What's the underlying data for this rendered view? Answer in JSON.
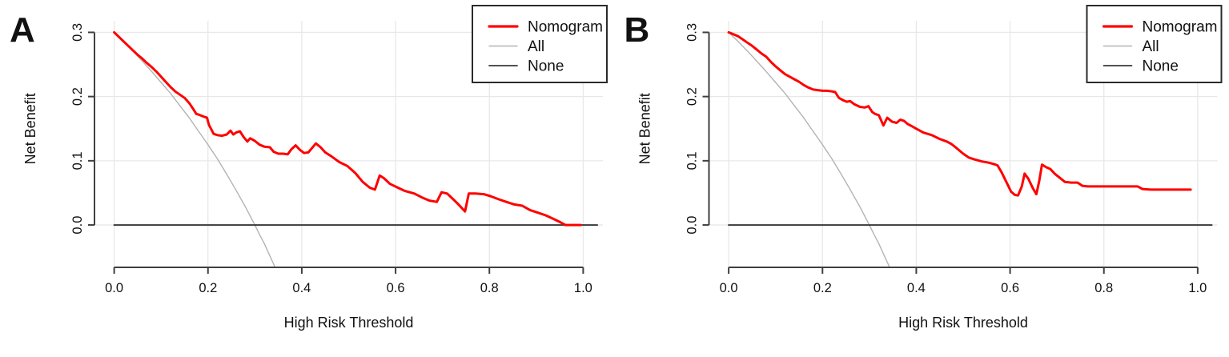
{
  "figure": {
    "background": "#ffffff",
    "description": "Decision curve analysis, two panels"
  },
  "colors": {
    "nomogram": "#fe0000",
    "all": "#b3b3b3",
    "none": "#3a3a3a",
    "axis": "#404040",
    "grid": "#e8e8e8",
    "text": "#111111",
    "legend_border": "#2b2b2b",
    "legend_fill": "#ffffff"
  },
  "chart_data": [
    {
      "type": "line",
      "panel_label": "A",
      "xlabel": "High Risk Threshold",
      "ylabel": "Net Benefit",
      "x_ticks": [
        0.0,
        0.2,
        0.4,
        0.6,
        0.8,
        1.0
      ],
      "x_tick_labels": [
        "0.0",
        "0.2",
        "0.4",
        "0.6",
        "0.8",
        "1.0"
      ],
      "y_ticks": [
        0.0,
        0.1,
        0.2,
        0.3
      ],
      "y_tick_labels": [
        "0.0",
        "0.1",
        "0.2",
        "0.3"
      ],
      "xlim": [
        -0.042,
        1.042
      ],
      "ylim": [
        -0.066,
        0.318
      ],
      "grid": true,
      "legend": {
        "position": "top-right",
        "entries": [
          {
            "label": "Nomogram",
            "color": "#fe0000",
            "width": 3.2
          },
          {
            "label": "All",
            "color": "#b3b3b3",
            "width": 1.4
          },
          {
            "label": "None",
            "color": "#3a3a3a",
            "width": 1.8
          }
        ]
      },
      "series": [
        {
          "name": "All",
          "color": "#b3b3b3",
          "width": 1.4,
          "points": [
            [
              0,
              0.3
            ],
            [
              0.02,
              0.286
            ],
            [
              0.04,
              0.271
            ],
            [
              0.06,
              0.255
            ],
            [
              0.08,
              0.239
            ],
            [
              0.1,
              0.222
            ],
            [
              0.12,
              0.205
            ],
            [
              0.14,
              0.186
            ],
            [
              0.16,
              0.167
            ],
            [
              0.18,
              0.146
            ],
            [
              0.2,
              0.125
            ],
            [
              0.22,
              0.103
            ],
            [
              0.24,
              0.079
            ],
            [
              0.26,
              0.054
            ],
            [
              0.28,
              0.028
            ],
            [
              0.3,
              0
            ],
            [
              0.31,
              -0.015
            ],
            [
              0.32,
              -0.029
            ],
            [
              0.33,
              -0.045
            ],
            [
              0.34,
              -0.061
            ],
            [
              0.343,
              -0.066
            ]
          ]
        },
        {
          "name": "None",
          "color": "#3a3a3a",
          "width": 2,
          "points": [
            [
              0,
              0
            ],
            [
              1.03,
              0
            ]
          ]
        },
        {
          "name": "Nomogram",
          "color": "#fe0000",
          "width": 3,
          "points": [
            [
              0,
              0.3
            ],
            [
              0.01,
              0.293
            ],
            [
              0.02,
              0.286
            ],
            [
              0.03,
              0.279
            ],
            [
              0.04,
              0.272
            ],
            [
              0.05,
              0.265
            ],
            [
              0.06,
              0.259
            ],
            [
              0.07,
              0.252
            ],
            [
              0.08,
              0.246
            ],
            [
              0.09,
              0.239
            ],
            [
              0.1,
              0.231
            ],
            [
              0.11,
              0.223
            ],
            [
              0.12,
              0.215
            ],
            [
              0.13,
              0.208
            ],
            [
              0.14,
              0.203
            ],
            [
              0.15,
              0.198
            ],
            [
              0.16,
              0.19
            ],
            [
              0.17,
              0.179
            ],
            [
              0.175,
              0.173
            ],
            [
              0.18,
              0.172
            ],
            [
              0.19,
              0.169
            ],
            [
              0.198,
              0.167
            ],
            [
              0.202,
              0.156
            ],
            [
              0.207,
              0.149
            ],
            [
              0.212,
              0.142
            ],
            [
              0.22,
              0.14
            ],
            [
              0.23,
              0.139
            ],
            [
              0.24,
              0.141
            ],
            [
              0.248,
              0.147
            ],
            [
              0.254,
              0.141
            ],
            [
              0.26,
              0.144
            ],
            [
              0.268,
              0.146
            ],
            [
              0.276,
              0.137
            ],
            [
              0.284,
              0.13
            ],
            [
              0.29,
              0.135
            ],
            [
              0.3,
              0.131
            ],
            [
              0.31,
              0.125
            ],
            [
              0.32,
              0.122
            ],
            [
              0.332,
              0.121
            ],
            [
              0.34,
              0.114
            ],
            [
              0.35,
              0.111
            ],
            [
              0.36,
              0.111
            ],
            [
              0.37,
              0.11
            ],
            [
              0.378,
              0.118
            ],
            [
              0.387,
              0.124
            ],
            [
              0.396,
              0.117
            ],
            [
              0.405,
              0.112
            ],
            [
              0.414,
              0.113
            ],
            [
              0.422,
              0.12
            ],
            [
              0.43,
              0.127
            ],
            [
              0.44,
              0.121
            ],
            [
              0.45,
              0.113
            ],
            [
              0.463,
              0.107
            ],
            [
              0.48,
              0.098
            ],
            [
              0.497,
              0.092
            ],
            [
              0.514,
              0.081
            ],
            [
              0.53,
              0.067
            ],
            [
              0.545,
              0.058
            ],
            [
              0.556,
              0.055
            ],
            [
              0.566,
              0.077
            ],
            [
              0.575,
              0.073
            ],
            [
              0.588,
              0.064
            ],
            [
              0.605,
              0.058
            ],
            [
              0.62,
              0.053
            ],
            [
              0.64,
              0.049
            ],
            [
              0.656,
              0.043
            ],
            [
              0.672,
              0.038
            ],
            [
              0.688,
              0.036
            ],
            [
              0.698,
              0.051
            ],
            [
              0.71,
              0.049
            ],
            [
              0.723,
              0.04
            ],
            [
              0.734,
              0.032
            ],
            [
              0.748,
              0.021
            ],
            [
              0.756,
              0.049
            ],
            [
              0.77,
              0.049
            ],
            [
              0.788,
              0.048
            ],
            [
              0.802,
              0.045
            ],
            [
              0.82,
              0.04
            ],
            [
              0.836,
              0.036
            ],
            [
              0.853,
              0.032
            ],
            [
              0.87,
              0.03
            ],
            [
              0.887,
              0.023
            ],
            [
              0.904,
              0.019
            ],
            [
              0.92,
              0.015
            ],
            [
              0.935,
              0.01
            ],
            [
              0.952,
              0.004
            ],
            [
              0.962,
              0
            ],
            [
              0.98,
              0
            ],
            [
              0.995,
              0
            ]
          ]
        }
      ]
    },
    {
      "type": "line",
      "panel_label": "B",
      "xlabel": "High Risk Threshold",
      "ylabel": "Net Benefit",
      "x_ticks": [
        0.0,
        0.2,
        0.4,
        0.6,
        0.8,
        1.0
      ],
      "x_tick_labels": [
        "0.0",
        "0.2",
        "0.4",
        "0.6",
        "0.8",
        "1.0"
      ],
      "y_ticks": [
        0.0,
        0.1,
        0.2,
        0.3
      ],
      "y_tick_labels": [
        "0.0",
        "0.1",
        "0.2",
        "0.3"
      ],
      "xlim": [
        -0.042,
        1.042
      ],
      "ylim": [
        -0.066,
        0.318
      ],
      "grid": true,
      "legend": {
        "position": "top-right",
        "entries": [
          {
            "label": "Nomogram",
            "color": "#fe0000",
            "width": 3.2
          },
          {
            "label": "All",
            "color": "#b3b3b3",
            "width": 1.4
          },
          {
            "label": "None",
            "color": "#3a3a3a",
            "width": 1.8
          }
        ]
      },
      "series": [
        {
          "name": "All",
          "color": "#b3b3b3",
          "width": 1.4,
          "points": [
            [
              0,
              0.3
            ],
            [
              0.02,
              0.286
            ],
            [
              0.04,
              0.271
            ],
            [
              0.06,
              0.255
            ],
            [
              0.08,
              0.239
            ],
            [
              0.1,
              0.222
            ],
            [
              0.12,
              0.205
            ],
            [
              0.14,
              0.186
            ],
            [
              0.16,
              0.167
            ],
            [
              0.18,
              0.146
            ],
            [
              0.2,
              0.125
            ],
            [
              0.22,
              0.103
            ],
            [
              0.24,
              0.079
            ],
            [
              0.26,
              0.054
            ],
            [
              0.28,
              0.028
            ],
            [
              0.3,
              0
            ],
            [
              0.31,
              -0.015
            ],
            [
              0.32,
              -0.029
            ],
            [
              0.33,
              -0.045
            ],
            [
              0.34,
              -0.061
            ],
            [
              0.343,
              -0.066
            ]
          ]
        },
        {
          "name": "None",
          "color": "#3a3a3a",
          "width": 2,
          "points": [
            [
              0,
              0
            ],
            [
              1.03,
              0
            ]
          ]
        },
        {
          "name": "Nomogram",
          "color": "#fe0000",
          "width": 3,
          "points": [
            [
              0,
              0.3
            ],
            [
              0.01,
              0.297
            ],
            [
              0.02,
              0.294
            ],
            [
              0.03,
              0.289
            ],
            [
              0.04,
              0.284
            ],
            [
              0.05,
              0.279
            ],
            [
              0.06,
              0.273
            ],
            [
              0.07,
              0.267
            ],
            [
              0.08,
              0.262
            ],
            [
              0.09,
              0.254
            ],
            [
              0.1,
              0.247
            ],
            [
              0.11,
              0.241
            ],
            [
              0.12,
              0.235
            ],
            [
              0.13,
              0.231
            ],
            [
              0.14,
              0.227
            ],
            [
              0.15,
              0.223
            ],
            [
              0.16,
              0.218
            ],
            [
              0.17,
              0.214
            ],
            [
              0.18,
              0.211
            ],
            [
              0.19,
              0.21
            ],
            [
              0.2,
              0.209
            ],
            [
              0.21,
              0.209
            ],
            [
              0.22,
              0.208
            ],
            [
              0.227,
              0.207
            ],
            [
              0.235,
              0.198
            ],
            [
              0.245,
              0.194
            ],
            [
              0.252,
              0.192
            ],
            [
              0.259,
              0.193
            ],
            [
              0.268,
              0.188
            ],
            [
              0.28,
              0.184
            ],
            [
              0.29,
              0.183
            ],
            [
              0.298,
              0.185
            ],
            [
              0.306,
              0.176
            ],
            [
              0.312,
              0.173
            ],
            [
              0.32,
              0.171
            ],
            [
              0.33,
              0.155
            ],
            [
              0.338,
              0.167
            ],
            [
              0.348,
              0.161
            ],
            [
              0.358,
              0.159
            ],
            [
              0.366,
              0.164
            ],
            [
              0.374,
              0.162
            ],
            [
              0.382,
              0.157
            ],
            [
              0.39,
              0.154
            ],
            [
              0.4,
              0.15
            ],
            [
              0.415,
              0.144
            ],
            [
              0.433,
              0.14
            ],
            [
              0.45,
              0.134
            ],
            [
              0.465,
              0.13
            ],
            [
              0.475,
              0.126
            ],
            [
              0.487,
              0.119
            ],
            [
              0.5,
              0.111
            ],
            [
              0.512,
              0.105
            ],
            [
              0.525,
              0.102
            ],
            [
              0.54,
              0.099
            ],
            [
              0.555,
              0.097
            ],
            [
              0.565,
              0.095
            ],
            [
              0.573,
              0.093
            ],
            [
              0.582,
              0.082
            ],
            [
              0.592,
              0.067
            ],
            [
              0.602,
              0.052
            ],
            [
              0.61,
              0.047
            ],
            [
              0.617,
              0.046
            ],
            [
              0.625,
              0.06
            ],
            [
              0.631,
              0.08
            ],
            [
              0.639,
              0.072
            ],
            [
              0.648,
              0.058
            ],
            [
              0.656,
              0.048
            ],
            [
              0.662,
              0.068
            ],
            [
              0.668,
              0.094
            ],
            [
              0.677,
              0.09
            ],
            [
              0.686,
              0.087
            ],
            [
              0.695,
              0.08
            ],
            [
              0.705,
              0.074
            ],
            [
              0.717,
              0.067
            ],
            [
              0.73,
              0.066
            ],
            [
              0.744,
              0.066
            ],
            [
              0.754,
              0.061
            ],
            [
              0.765,
              0.06
            ],
            [
              0.79,
              0.06
            ],
            [
              0.82,
              0.06
            ],
            [
              0.85,
              0.06
            ],
            [
              0.872,
              0.06
            ],
            [
              0.882,
              0.056
            ],
            [
              0.9,
              0.055
            ],
            [
              0.93,
              0.055
            ],
            [
              0.96,
              0.055
            ],
            [
              0.985,
              0.055
            ]
          ]
        }
      ]
    }
  ]
}
